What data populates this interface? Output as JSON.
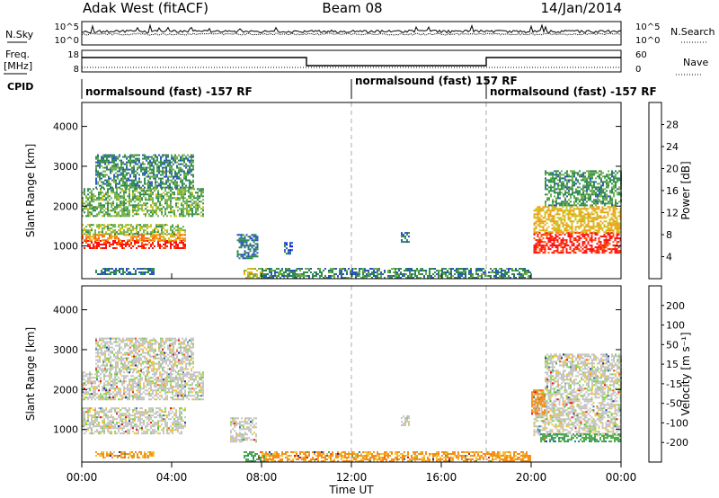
{
  "header": {
    "station": "Adak West (fitACF)",
    "beam": "Beam 08",
    "date": "14/Jan/2014"
  },
  "noise_panel": {
    "left_label": "N.Sky",
    "right_label": "N.Search",
    "tick_top": "10^5",
    "tick_bottom": "10^0"
  },
  "freq_panel": {
    "left_label_1": "Freq.",
    "left_label_2": "[MHz]",
    "left_ticks": [
      "18",
      "8"
    ],
    "right_label": "Nave",
    "right_ticks": [
      "60",
      "0"
    ]
  },
  "cpid": {
    "label": "CPID",
    "segments": [
      {
        "label": "normalsound (fast) -157 RF",
        "start_hour": 0,
        "end_hour": 12
      },
      {
        "label": "normalsound (fast) 157 RF",
        "start_hour": 12,
        "end_hour": 18
      },
      {
        "label": "normalsound (fast) -157 RF",
        "start_hour": 18,
        "end_hour": 24
      }
    ]
  },
  "time_axis": {
    "label": "Time UT",
    "ticks": [
      "00:00",
      "04:00",
      "08:00",
      "12:00",
      "16:00",
      "20:00",
      "00:00"
    ]
  },
  "chart_data": [
    {
      "type": "heatmap",
      "name": "power",
      "ylabel": "Slant Range [km]",
      "yticks": [
        1000,
        2000,
        3000,
        4000
      ],
      "ylim": [
        180,
        4600
      ],
      "xlim_hours": [
        0,
        24
      ],
      "colorbar": {
        "label": "Power [dB]",
        "ticks": [
          "4",
          "8",
          "12",
          "16",
          "20",
          "24",
          "28"
        ],
        "range": [
          0,
          32
        ],
        "colors": [
          "#0018ff",
          "#2a55ba",
          "#2f8a4e",
          "#6fb04a",
          "#c9c31b",
          "#f49a12",
          "#ff5a08",
          "#ff1010"
        ]
      },
      "echo_regions": [
        {
          "t0": 0.0,
          "t1": 4.6,
          "r0": 950,
          "r1": 1150,
          "level": 30
        },
        {
          "t0": 0.0,
          "t1": 4.6,
          "r0": 1150,
          "r1": 1300,
          "level": 23
        },
        {
          "t0": 0.0,
          "t1": 4.6,
          "r0": 1300,
          "r1": 1550,
          "level": 15
        },
        {
          "t0": 0.0,
          "t1": 5.4,
          "r0": 1750,
          "r1": 2450,
          "level": 13
        },
        {
          "t0": 0.6,
          "t1": 5.0,
          "r0": 2450,
          "r1": 3300,
          "level": 10
        },
        {
          "t0": 6.9,
          "t1": 7.8,
          "r0": 700,
          "r1": 1300,
          "level": 8
        },
        {
          "t0": 7.2,
          "t1": 8.2,
          "r0": 200,
          "r1": 450,
          "level": 18
        },
        {
          "t0": 0.6,
          "t1": 3.2,
          "r0": 300,
          "r1": 450,
          "level": 8
        },
        {
          "t0": 8.0,
          "t1": 20.0,
          "r0": 200,
          "r1": 450,
          "level": 10
        },
        {
          "t0": 9.0,
          "t1": 9.4,
          "r0": 800,
          "r1": 1100,
          "level": 7
        },
        {
          "t0": 14.2,
          "t1": 14.6,
          "r0": 1100,
          "r1": 1350,
          "level": 8
        },
        {
          "t0": 20.1,
          "t1": 24.0,
          "r0": 850,
          "r1": 1350,
          "level": 30
        },
        {
          "t0": 20.1,
          "t1": 24.0,
          "r0": 1350,
          "r1": 2000,
          "level": 20
        },
        {
          "t0": 20.6,
          "t1": 24.0,
          "r0": 2000,
          "r1": 2900,
          "level": 11
        }
      ]
    },
    {
      "type": "heatmap",
      "name": "velocity",
      "ylabel": "Slant Range [km]",
      "yticks": [
        1000,
        2000,
        3000,
        4000
      ],
      "ylim": [
        180,
        4600
      ],
      "xlim_hours": [
        0,
        24
      ],
      "colorbar": {
        "label": "Velocity [m s⁻¹]",
        "ticks": [
          "200",
          "100",
          "50",
          "15",
          "-15",
          "-50",
          "-100",
          "-200"
        ],
        "colors": [
          "#1a2fa0",
          "#2a7f9c",
          "#4aa84a",
          "#7ed34c",
          "#c4c4c4",
          "#f2c23a",
          "#f58f1a",
          "#ff5a10",
          "#e0101a"
        ]
      },
      "echo_regions": [
        {
          "t0": 0.0,
          "t1": 4.6,
          "r0": 900,
          "r1": 1550,
          "vel": 0
        },
        {
          "t0": 0.0,
          "t1": 5.4,
          "r0": 1750,
          "r1": 2450,
          "vel": 0
        },
        {
          "t0": 0.6,
          "t1": 5.0,
          "r0": 2450,
          "r1": 3300,
          "vel": 0
        },
        {
          "t0": 6.6,
          "t1": 7.8,
          "r0": 700,
          "r1": 1300,
          "vel": 0
        },
        {
          "t0": 7.2,
          "t1": 8.2,
          "r0": 200,
          "r1": 450,
          "vel": 60
        },
        {
          "t0": 0.6,
          "t1": 3.2,
          "r0": 300,
          "r1": 450,
          "vel": -40
        },
        {
          "t0": 8.0,
          "t1": 20.0,
          "r0": 200,
          "r1": 450,
          "vel": -40
        },
        {
          "t0": 14.2,
          "t1": 14.6,
          "r0": 1100,
          "r1": 1350,
          "vel": 0
        },
        {
          "t0": 20.1,
          "t1": 24.0,
          "r0": 850,
          "r1": 2000,
          "vel": 0
        },
        {
          "t0": 20.6,
          "t1": 24.0,
          "r0": 2000,
          "r1": 2900,
          "vel": 0
        },
        {
          "t0": 20.0,
          "t1": 20.6,
          "r0": 1400,
          "r1": 2000,
          "vel": -60
        },
        {
          "t0": 20.4,
          "t1": 24.0,
          "r0": 700,
          "r1": 900,
          "vel": 60
        }
      ]
    }
  ]
}
